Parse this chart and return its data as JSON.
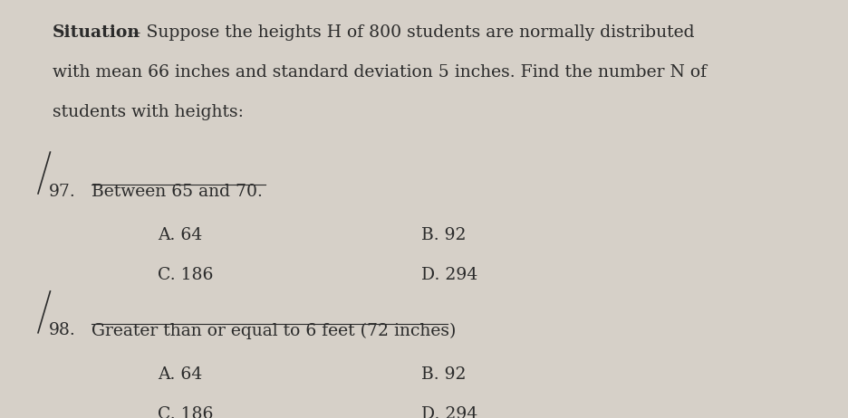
{
  "bg_color": "#d6d0c8",
  "text_color": "#2b2b2b",
  "situation_bold": "Situation",
  "situation_rest": " – Suppose the heights H of 800 students are normally distributed",
  "sit_line2": "with mean 66 inches and standard deviation 5 inches. Find the number N of",
  "sit_line3": "students with heights:",
  "q97_num": "97.",
  "q97_text": "Between 65 and 70.",
  "q97_A": "A. 64",
  "q97_B": "B. 92",
  "q97_C": "C. 186",
  "q97_D": "D. 294",
  "q98_num": "98.",
  "q98_text": "Greater than or equal to 6 feet (72 inches)",
  "q98_A": "A. 64",
  "q98_B": "B. 92",
  "q98_C": "C. 186",
  "q98_D": "D. 294",
  "font_size_body": 13.5,
  "font_family": "serif"
}
